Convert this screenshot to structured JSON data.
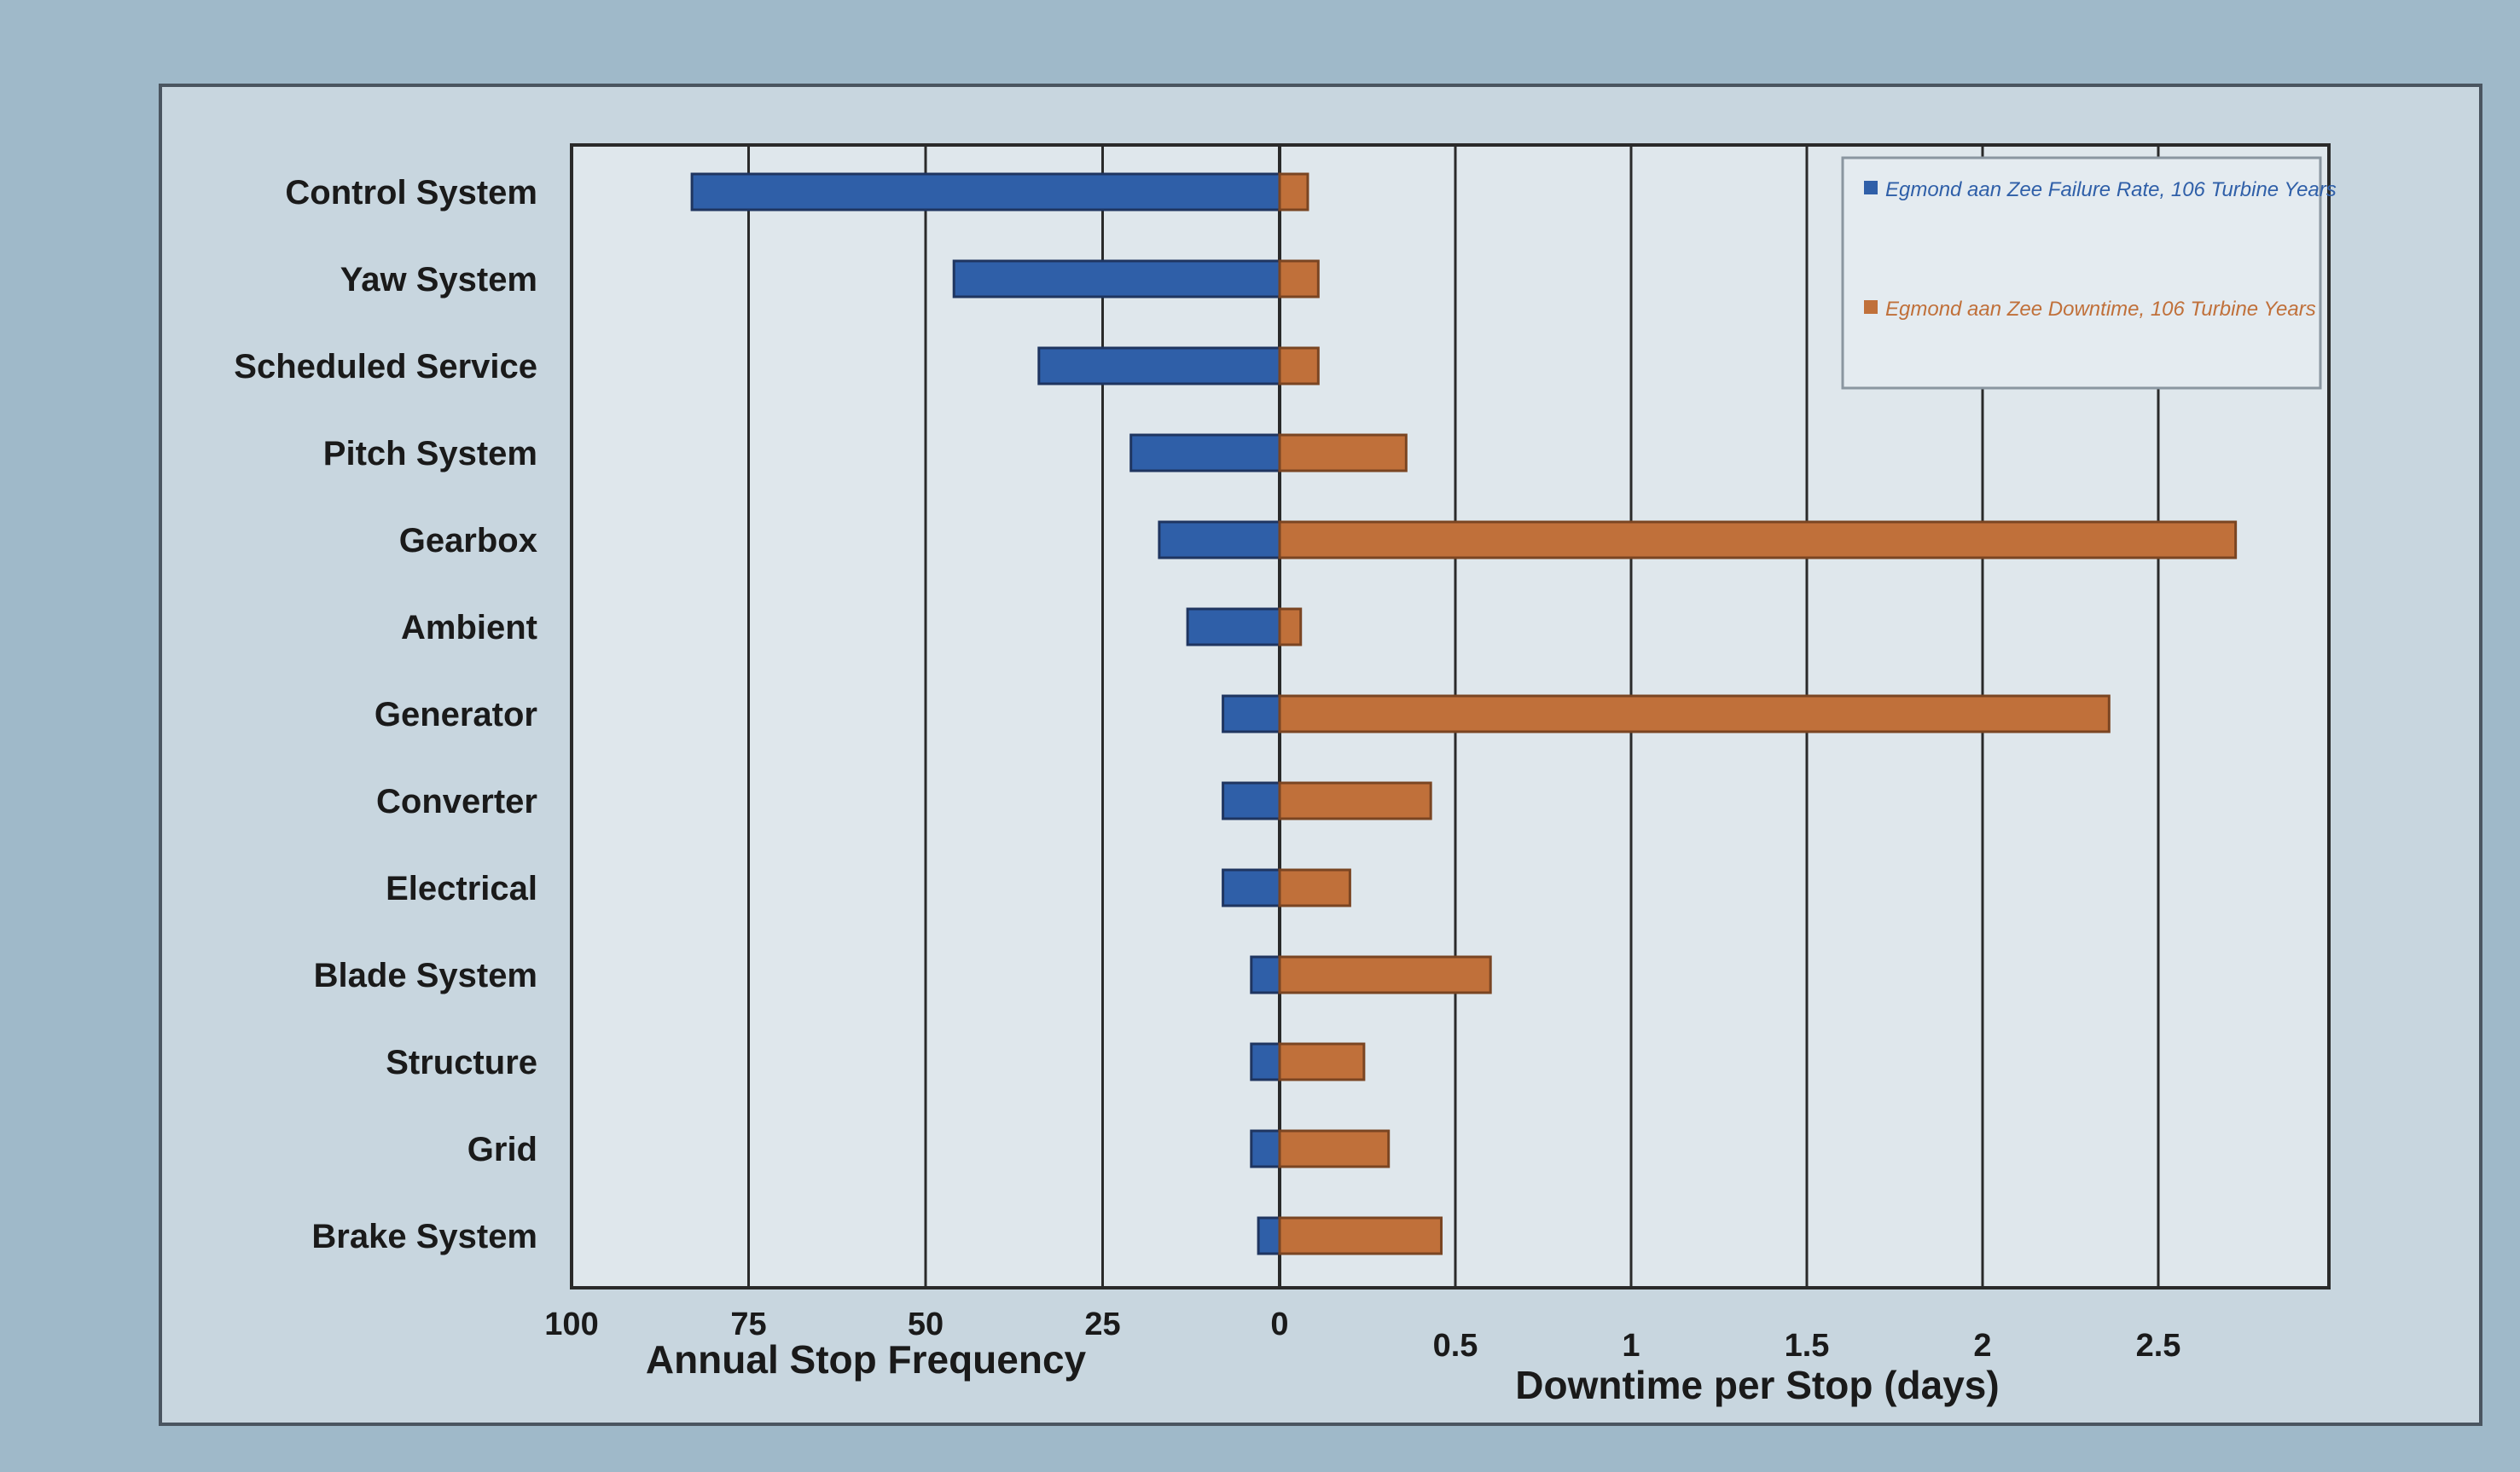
{
  "chart_data": {
    "type": "bar",
    "categories": [
      "Control System",
      "Yaw System",
      "Scheduled Service",
      "Pitch System",
      "Gearbox",
      "Ambient",
      "Generator",
      "Converter",
      "Electrical",
      "Blade System",
      "Structure",
      "Grid",
      "Brake System"
    ],
    "series": [
      {
        "name": "Egmond aan Zee Failure Rate, 106 Turbine Years",
        "axis": "Annual Stop Frequency",
        "color": "#2f5fa8",
        "values": [
          83,
          46,
          34,
          21,
          17,
          13,
          8,
          8,
          8,
          4,
          4,
          4,
          3
        ]
      },
      {
        "name": "Egmond aan Zee Downtime, 106 Turbine Years",
        "axis": "Downtime per Stop (days)",
        "color": "#c0703a",
        "values": [
          0.08,
          0.11,
          0.11,
          0.36,
          2.72,
          0.06,
          2.36,
          0.43,
          0.2,
          0.6,
          0.24,
          0.31,
          0.46
        ]
      }
    ],
    "left_axis": {
      "label": "Annual Stop Frequency",
      "ticks": [
        100,
        75,
        50,
        25,
        0
      ],
      "tick_labels": [
        "100",
        "75",
        "50",
        "25",
        "0"
      ],
      "range": [
        100,
        0
      ]
    },
    "right_axis": {
      "label": "Downtime per Stop (days)",
      "ticks": [
        0.5,
        1,
        1.5,
        2,
        2.5
      ],
      "tick_labels": [
        "0.5",
        "1",
        "1.5",
        "2",
        "2.5"
      ],
      "range": [
        0,
        3
      ]
    },
    "legend": {
      "placement": "top-right",
      "entries": [
        "Egmond aan Zee Failure Rate, 106 Turbine Years",
        "Egmond aan Zee Downtime, 106 Turbine Years"
      ]
    },
    "grid": true
  }
}
